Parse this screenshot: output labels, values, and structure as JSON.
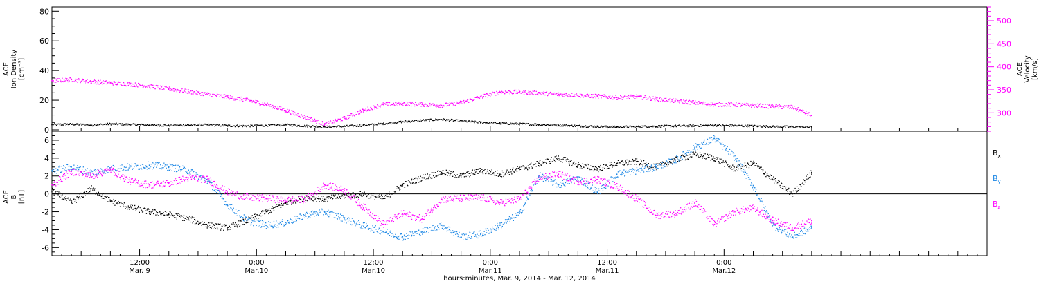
{
  "chart_data": [
    {
      "type": "scatter",
      "ylabel_left": [
        "ACE",
        "Ion Density",
        "[cm⁻³]"
      ],
      "ylabel_right": [
        "ACE",
        "Velocity",
        "[km/s]"
      ],
      "ylim_left": [
        0,
        82
      ],
      "yticks_left": [
        0,
        20,
        40,
        60,
        80
      ],
      "ylim_right": [
        260,
        530
      ],
      "yticks_right": [
        300,
        350,
        400,
        450,
        500
      ],
      "grid": false,
      "series": [
        {
          "color": "#000000",
          "axis": "left",
          "x": [
            0,
            2,
            4,
            6,
            8,
            10,
            12,
            14,
            16,
            18,
            20,
            22,
            24,
            26,
            28,
            30,
            32,
            34,
            36,
            38,
            40,
            42,
            44,
            46,
            48,
            50,
            52,
            54,
            56,
            58,
            60,
            62,
            64,
            66,
            68,
            70,
            72,
            74,
            76,
            78
          ],
          "y": [
            3.5,
            3.8,
            3.2,
            4.0,
            3.6,
            3.2,
            3.0,
            3.2,
            3.4,
            2.8,
            2.6,
            3.0,
            3.4,
            2.6,
            2.0,
            2.4,
            3.0,
            4.2,
            5.5,
            6.5,
            7.0,
            6.0,
            5.0,
            4.4,
            4.0,
            3.6,
            3.2,
            2.6,
            2.2,
            2.0,
            2.2,
            2.4,
            2.6,
            2.8,
            3.0,
            2.8,
            2.6,
            2.2,
            2.0,
            1.8
          ]
        },
        {
          "color": "#ff00ff",
          "axis": "right",
          "x": [
            0,
            2,
            4,
            6,
            8,
            10,
            12,
            14,
            16,
            18,
            20,
            22,
            24,
            26,
            28,
            30,
            32,
            34,
            36,
            38,
            40,
            42,
            44,
            46,
            48,
            50,
            52,
            54,
            56,
            58,
            60,
            62,
            64,
            66,
            68,
            70,
            72,
            74,
            76,
            78
          ],
          "y": [
            370,
            372,
            368,
            365,
            362,
            358,
            352,
            346,
            340,
            334,
            328,
            318,
            305,
            290,
            275,
            288,
            306,
            318,
            320,
            318,
            316,
            322,
            335,
            345,
            345,
            343,
            340,
            338,
            336,
            333,
            335,
            330,
            326,
            322,
            318,
            318,
            316,
            314,
            312,
            294
          ]
        }
      ]
    },
    {
      "type": "scatter",
      "ylabel": [
        "ACE",
        "B",
        "[nT]"
      ],
      "ylim": [
        -6.9,
        7
      ],
      "yticks": [
        -6,
        -4,
        -2,
        0,
        2,
        4,
        6
      ],
      "zero_line": true,
      "grid": false,
      "legend_position": "right",
      "legend": [
        {
          "label": "B",
          "sub": "x",
          "color": "#000000"
        },
        {
          "label": "B",
          "sub": "y",
          "color": "#1e88e5"
        },
        {
          "label": "B",
          "sub": "z",
          "color": "#ff00ff"
        }
      ],
      "series": [
        {
          "color": "#000000",
          "x": [
            0,
            2,
            4,
            6,
            8,
            10,
            12,
            14,
            16,
            18,
            20,
            22,
            24,
            26,
            28,
            30,
            32,
            34,
            36,
            38,
            40,
            42,
            44,
            46,
            48,
            50,
            52,
            54,
            56,
            58,
            60,
            62,
            64,
            66,
            68,
            70,
            72,
            74,
            76,
            78
          ],
          "y": [
            0.3,
            -1.0,
            0.6,
            -0.8,
            -1.5,
            -2.0,
            -2.3,
            -2.8,
            -3.5,
            -3.8,
            -3.0,
            -2.0,
            -1.0,
            -0.4,
            -0.6,
            -0.2,
            0.0,
            -0.5,
            1.0,
            1.8,
            2.4,
            2.0,
            2.6,
            2.2,
            2.8,
            3.4,
            4.0,
            3.2,
            2.8,
            3.4,
            3.6,
            3.0,
            3.8,
            4.4,
            4.0,
            2.8,
            3.4,
            1.6,
            0.0,
            2.4
          ]
        },
        {
          "color": "#1e88e5",
          "x": [
            0,
            2,
            4,
            6,
            8,
            10,
            12,
            14,
            16,
            18,
            20,
            22,
            24,
            26,
            28,
            30,
            32,
            34,
            36,
            38,
            40,
            42,
            44,
            46,
            48,
            50,
            52,
            54,
            56,
            58,
            60,
            62,
            64,
            66,
            68,
            70,
            72,
            74,
            76,
            78
          ],
          "y": [
            2.6,
            3.0,
            2.4,
            2.8,
            3.0,
            3.2,
            3.0,
            2.6,
            1.4,
            -1.2,
            -3.0,
            -3.5,
            -3.2,
            -2.4,
            -2.0,
            -2.8,
            -3.6,
            -4.2,
            -4.8,
            -4.2,
            -3.5,
            -4.8,
            -4.5,
            -3.5,
            -2.2,
            2.0,
            1.0,
            1.8,
            0.2,
            2.2,
            2.6,
            3.0,
            3.8,
            5.2,
            6.2,
            4.2,
            0.8,
            -3.5,
            -4.8,
            -3.8
          ]
        },
        {
          "color": "#ff00ff",
          "x": [
            0,
            2,
            4,
            6,
            8,
            10,
            12,
            14,
            16,
            18,
            20,
            22,
            24,
            26,
            28,
            30,
            32,
            34,
            36,
            38,
            40,
            42,
            44,
            46,
            48,
            50,
            52,
            54,
            56,
            58,
            60,
            62,
            64,
            66,
            68,
            70,
            72,
            74,
            76,
            78
          ],
          "y": [
            1.0,
            2.5,
            2.0,
            2.7,
            1.4,
            1.0,
            1.2,
            1.8,
            1.6,
            0.2,
            -0.4,
            -0.5,
            -0.7,
            -0.6,
            1.0,
            0.4,
            -1.5,
            -3.4,
            -2.2,
            -2.8,
            -0.6,
            -0.5,
            -0.4,
            -1.0,
            -0.6,
            1.8,
            2.2,
            1.4,
            1.6,
            0.8,
            -0.5,
            -2.4,
            -2.2,
            -1.0,
            -3.4,
            -2.0,
            -1.6,
            -3.0,
            -3.8,
            -3.0
          ]
        }
      ]
    }
  ],
  "xaxis": {
    "xlabel": "hours:minutes, Mar.  9, 2014 - Mar. 12, 2014",
    "xlim_hours": [
      0,
      96
    ],
    "major_ticks": [
      {
        "hours": 9,
        "time": "12:00",
        "day": "Mar. 9"
      },
      {
        "hours": 21,
        "time": "0:00",
        "day": "Mar.10"
      },
      {
        "hours": 33,
        "time": "12:00",
        "day": "Mar.10"
      },
      {
        "hours": 45,
        "time": "0:00",
        "day": "Mar.11"
      },
      {
        "hours": 57,
        "time": "12:00",
        "day": "Mar.11"
      },
      {
        "hours": 69,
        "time": "0:00",
        "day": "Mar.12"
      }
    ]
  },
  "colors": {
    "density": "#000000",
    "velocity": "#ff00ff",
    "bx": "#000000",
    "by": "#1e88e5",
    "bz": "#ff00ff"
  }
}
